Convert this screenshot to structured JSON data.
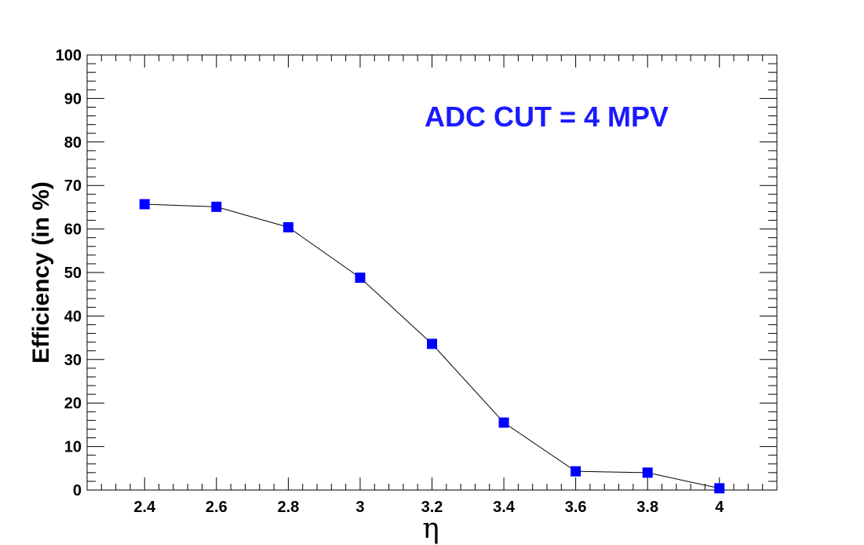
{
  "chart_data": {
    "type": "line",
    "title": "",
    "xlabel": "η",
    "ylabel": "Efficiency (in %)",
    "annotation": "ADC CUT = 4 MPV",
    "annotation_color": "#1a1aff",
    "marker_color": "#0000ff",
    "line_color": "#000000",
    "xlim": [
      2.24,
      4.16
    ],
    "ylim": [
      0,
      100
    ],
    "x_ticks": [
      2.4,
      2.6,
      2.8,
      3,
      3.2,
      3.4,
      3.6,
      3.8,
      4
    ],
    "x_tick_labels": [
      "2.4",
      "2.6",
      "2.8",
      "3",
      "3.2",
      "3.4",
      "3.6",
      "3.8",
      "4"
    ],
    "y_ticks": [
      0,
      10,
      20,
      30,
      40,
      50,
      60,
      70,
      80,
      90,
      100
    ],
    "y_tick_labels": [
      "0",
      "10",
      "20",
      "30",
      "40",
      "50",
      "60",
      "70",
      "80",
      "90",
      "100"
    ],
    "grid": false,
    "series": [
      {
        "x": [
          2.4,
          2.6,
          2.8,
          3.0,
          3.2,
          3.4,
          3.6,
          3.8,
          4.0
        ],
        "y": [
          65.7,
          65.1,
          60.4,
          48.8,
          33.6,
          15.5,
          4.3,
          4.0,
          0.4
        ]
      }
    ]
  }
}
